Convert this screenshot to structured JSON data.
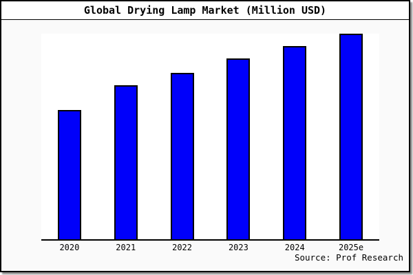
{
  "header": {
    "title": "Global Drying Lamp Market (Million USD)"
  },
  "footer": {
    "source_label": "Source: Prof Research"
  },
  "colors": {
    "bar_fill": "#0000fa",
    "bar_border": "#000000",
    "chart_background": "#fafafa",
    "plot_background": "#ffffff",
    "title_background": "#ffffff",
    "axis_line": "#000000"
  },
  "chart_data": {
    "type": "bar",
    "title": "Global Drying Lamp Market (Million USD)",
    "categories": [
      "2020",
      "2021",
      "2022",
      "2023",
      "2024",
      "2025e"
    ],
    "values": [
      63,
      75,
      81,
      88,
      94,
      100
    ],
    "values_note": "no y-axis tick labels shown; values are relative bar heights with 2025e = 100",
    "xlabel": "",
    "ylabel": "",
    "ylim": [
      0,
      100
    ],
    "grid": false,
    "legend": false
  }
}
